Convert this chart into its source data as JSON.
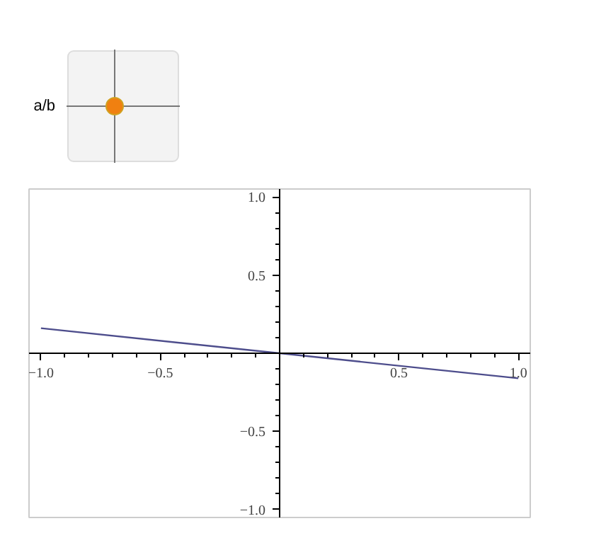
{
  "chart_data": {
    "type": "line",
    "x": [
      -1.0,
      1.0
    ],
    "series": [
      {
        "color": "#4d4d8c",
        "values": [
          0.16,
          -0.16
        ]
      }
    ],
    "xlim": [
      -1.05,
      1.05
    ],
    "ylim": [
      -1.05,
      1.05
    ],
    "xticks": [
      {
        "value": -1.0,
        "label": "−1.0"
      },
      {
        "value": -0.5,
        "label": "−0.5"
      },
      {
        "value": 0.5,
        "label": "0.5"
      },
      {
        "value": 1.0,
        "label": "1.0"
      }
    ],
    "yticks": [
      {
        "value": -1.0,
        "label": "−1.0"
      },
      {
        "value": -0.5,
        "label": "−0.5"
      },
      {
        "value": 0.5,
        "label": "0.5"
      },
      {
        "value": 1.0,
        "label": "1.0"
      }
    ],
    "grid": false,
    "annotations": [
      "a/b"
    ]
  }
}
